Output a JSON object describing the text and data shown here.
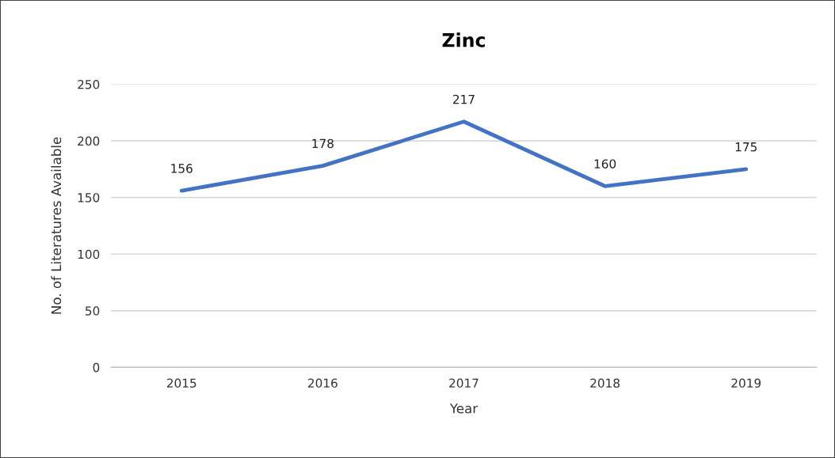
{
  "chart_data": {
    "type": "line",
    "title": "Zinc",
    "xlabel": "Year",
    "ylabel": "No. of Literatures Available",
    "categories": [
      "2015",
      "2016",
      "2017",
      "2018",
      "2019"
    ],
    "series": [
      {
        "color": "#4472c4",
        "values": [
          156,
          178,
          217,
          160,
          175
        ]
      }
    ],
    "ylim": [
      0,
      250
    ],
    "yticks": [
      0,
      50,
      100,
      150,
      200,
      250
    ],
    "grid": "y",
    "data_labels": true,
    "legend": false,
    "marker": "none",
    "line_style": "solid"
  }
}
